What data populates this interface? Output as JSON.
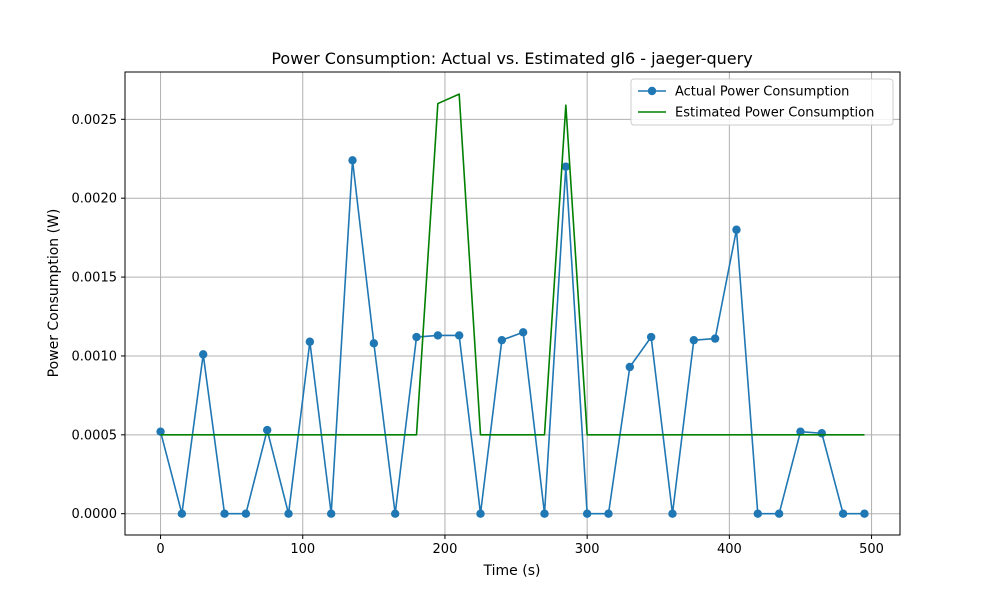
{
  "chart_data": {
    "type": "line",
    "title": "Power Consumption: Actual vs. Estimated gl6 - jaeger-query",
    "xlabel": "Time (s)",
    "ylabel": "Power Consumption (W)",
    "xlim": [
      -25,
      520
    ],
    "ylim": [
      -0.000135,
      0.0028
    ],
    "xticks": [
      0,
      100,
      200,
      300,
      400,
      500
    ],
    "xtick_labels": [
      "0",
      "100",
      "200",
      "300",
      "400",
      "500"
    ],
    "yticks": [
      0,
      0.0005,
      0.001,
      0.0015,
      0.002,
      0.0025
    ],
    "ytick_labels": [
      "0.0000",
      "0.0005",
      "0.0010",
      "0.0015",
      "0.0020",
      "0.0025"
    ],
    "grid": true,
    "legend_position": "top-right",
    "series": [
      {
        "name": "Actual Power Consumption",
        "color": "#1f77b4",
        "marker": "circle",
        "x": [
          0,
          15,
          30,
          45,
          60,
          75,
          90,
          105,
          120,
          135,
          150,
          165,
          180,
          195,
          210,
          225,
          240,
          255,
          270,
          285,
          300,
          315,
          330,
          345,
          360,
          375,
          390,
          405,
          420,
          435,
          450,
          465,
          480,
          495
        ],
        "y": [
          0.00052,
          0.0,
          0.00101,
          0.0,
          0.0,
          0.00053,
          0.0,
          0.00109,
          0.0,
          0.00224,
          0.00108,
          0.0,
          0.00112,
          0.00113,
          0.00113,
          0.0,
          0.0011,
          0.00115,
          0.0,
          0.0022,
          0.0,
          0.0,
          0.00093,
          0.00112,
          0.0,
          0.0011,
          0.00111,
          0.0018,
          0.0,
          0.0,
          0.00052,
          0.00051,
          0.0,
          0.0
        ]
      },
      {
        "name": "Estimated Power Consumption",
        "color": "#008000",
        "marker": "none",
        "x": [
          0,
          15,
          30,
          45,
          60,
          75,
          90,
          105,
          120,
          135,
          150,
          165,
          180,
          195,
          210,
          225,
          240,
          255,
          270,
          285,
          300,
          315,
          330,
          345,
          360,
          375,
          390,
          405,
          420,
          435,
          450,
          465,
          480,
          495
        ],
        "y": [
          0.0005,
          0.0005,
          0.0005,
          0.0005,
          0.0005,
          0.0005,
          0.0005,
          0.0005,
          0.0005,
          0.0005,
          0.0005,
          0.0005,
          0.0005,
          0.0026,
          0.00266,
          0.0005,
          0.0005,
          0.0005,
          0.0005,
          0.00259,
          0.0005,
          0.0005,
          0.0005,
          0.0005,
          0.0005,
          0.0005,
          0.0005,
          0.0005,
          0.0005,
          0.0005,
          0.0005,
          0.0005,
          0.0005,
          0.0005
        ]
      }
    ]
  }
}
